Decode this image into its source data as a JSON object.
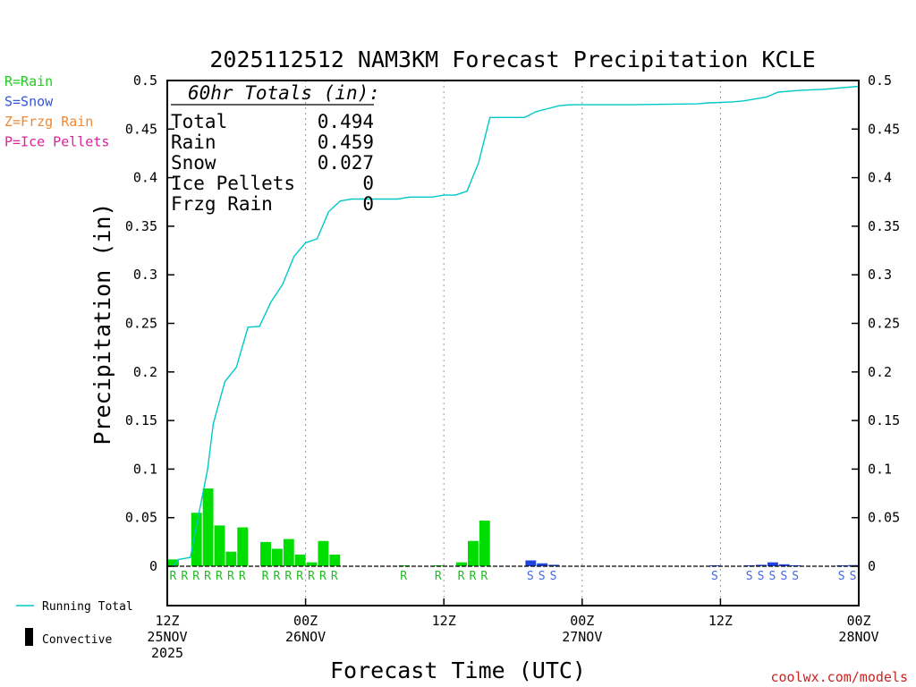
{
  "chart_data": {
    "type": "bar",
    "title": "2025112512 NAM3KM Forecast Precipitation KCLE",
    "ylabel": "Precipitation (in)",
    "xlabel": "Forecast Time (UTC)",
    "ylim": [
      0,
      0.5
    ],
    "xlim_hours": [
      0,
      60
    ],
    "y_ticks": [
      {
        "value": 0,
        "label": "0"
      },
      {
        "value": 0.05,
        "label": "0.05"
      },
      {
        "value": 0.1,
        "label": "0.1"
      },
      {
        "value": 0.15,
        "label": "0.15"
      },
      {
        "value": 0.2,
        "label": "0.2"
      },
      {
        "value": 0.25,
        "label": "0.25"
      },
      {
        "value": 0.3,
        "label": "0.3"
      },
      {
        "value": 0.35,
        "label": "0.35"
      },
      {
        "value": 0.4,
        "label": "0.4"
      },
      {
        "value": 0.45,
        "label": "0.45"
      },
      {
        "value": 0.5,
        "label": "0.5"
      }
    ],
    "x_ticks": [
      {
        "hour": 0,
        "lines": [
          "12Z",
          "25NOV",
          "2025"
        ]
      },
      {
        "hour": 12,
        "lines": [
          "00Z",
          "26NOV"
        ]
      },
      {
        "hour": 24,
        "lines": [
          "12Z"
        ]
      },
      {
        "hour": 36,
        "lines": [
          "00Z",
          "27NOV"
        ]
      },
      {
        "hour": 48,
        "lines": [
          "12Z"
        ]
      },
      {
        "hour": 60,
        "lines": [
          "00Z",
          "28NOV"
        ]
      }
    ],
    "gridlines_hours": [
      12,
      24,
      36,
      48
    ],
    "legend": [
      {
        "label": "R=Rain",
        "color": "#22cc22"
      },
      {
        "label": "S=Snow",
        "color": "#3355dd"
      },
      {
        "label": "Z=Frzg Rain",
        "color": "#ee8833"
      },
      {
        "label": "P=Ice Pellets",
        "color": "#dd2299"
      }
    ],
    "bottom_legend": [
      {
        "label": "Running Total",
        "color": "#00c8c8",
        "kind": "line"
      },
      {
        "label": "Convective",
        "color": "#000000",
        "kind": "bar"
      }
    ],
    "totals_header": "60hr Totals (in):",
    "totals": [
      {
        "label": "Total",
        "value": "0.494"
      },
      {
        "label": "Rain",
        "value": "0.459"
      },
      {
        "label": "Snow",
        "value": "0.027"
      },
      {
        "label": "Ice Pellets",
        "value": "0"
      },
      {
        "label": "Frzg Rain",
        "value": "0"
      }
    ],
    "type_colors": {
      "R": "#00dd00",
      "S": "#2244dd"
    },
    "type_label_colors": {
      "R": "#22bb22",
      "S": "#4466dd"
    },
    "series": [
      {
        "hour": 1,
        "value": 0.007,
        "ptype": "R"
      },
      {
        "hour": 2,
        "value": 0.0,
        "ptype": "R"
      },
      {
        "hour": 3,
        "value": 0.055,
        "ptype": "R"
      },
      {
        "hour": 4,
        "value": 0.08,
        "ptype": "R"
      },
      {
        "hour": 5,
        "value": 0.042,
        "ptype": "R"
      },
      {
        "hour": 6,
        "value": 0.015,
        "ptype": "R"
      },
      {
        "hour": 7,
        "value": 0.04,
        "ptype": "R"
      },
      {
        "hour": 9,
        "value": 0.025,
        "ptype": "R"
      },
      {
        "hour": 10,
        "value": 0.018,
        "ptype": "R"
      },
      {
        "hour": 11,
        "value": 0.028,
        "ptype": "R"
      },
      {
        "hour": 12,
        "value": 0.012,
        "ptype": "R"
      },
      {
        "hour": 13,
        "value": 0.004,
        "ptype": "R"
      },
      {
        "hour": 14,
        "value": 0.026,
        "ptype": "R"
      },
      {
        "hour": 15,
        "value": 0.012,
        "ptype": "R"
      },
      {
        "hour": 21,
        "value": 0.0005,
        "ptype": "R"
      },
      {
        "hour": 24,
        "value": 0.001,
        "ptype": "R"
      },
      {
        "hour": 26,
        "value": 0.004,
        "ptype": "R"
      },
      {
        "hour": 27,
        "value": 0.026,
        "ptype": "R"
      },
      {
        "hour": 28,
        "value": 0.047,
        "ptype": "R"
      },
      {
        "hour": 32,
        "value": 0.006,
        "ptype": "S"
      },
      {
        "hour": 33,
        "value": 0.003,
        "ptype": "S"
      },
      {
        "hour": 34,
        "value": 0.0015,
        "ptype": "S"
      },
      {
        "hour": 48,
        "value": 0.0003,
        "ptype": "S"
      },
      {
        "hour": 51,
        "value": 0.0005,
        "ptype": "S"
      },
      {
        "hour": 52,
        "value": 0.0015,
        "ptype": "S"
      },
      {
        "hour": 53,
        "value": 0.004,
        "ptype": "S"
      },
      {
        "hour": 54,
        "value": 0.002,
        "ptype": "S"
      },
      {
        "hour": 55,
        "value": 0.0005,
        "ptype": "S"
      },
      {
        "hour": 59,
        "value": 0.0002,
        "ptype": "S"
      },
      {
        "hour": 60,
        "value": 0.0012,
        "ptype": "S"
      }
    ],
    "running_total": [
      {
        "hour": 0.5,
        "value": 0.0
      },
      {
        "hour": 1,
        "value": 0.007
      },
      {
        "hour": 2,
        "value": 0.009
      },
      {
        "hour": 3,
        "value": 0.07
      },
      {
        "hour": 3.5,
        "value": 0.1
      },
      {
        "hour": 4,
        "value": 0.147
      },
      {
        "hour": 5,
        "value": 0.19
      },
      {
        "hour": 6,
        "value": 0.205
      },
      {
        "hour": 7,
        "value": 0.246
      },
      {
        "hour": 8,
        "value": 0.247
      },
      {
        "hour": 9,
        "value": 0.272
      },
      {
        "hour": 10,
        "value": 0.29
      },
      {
        "hour": 11,
        "value": 0.319
      },
      {
        "hour": 12,
        "value": 0.333
      },
      {
        "hour": 13,
        "value": 0.337
      },
      {
        "hour": 14,
        "value": 0.365
      },
      {
        "hour": 15,
        "value": 0.376
      },
      {
        "hour": 16,
        "value": 0.378
      },
      {
        "hour": 20,
        "value": 0.378
      },
      {
        "hour": 21,
        "value": 0.38
      },
      {
        "hour": 23,
        "value": 0.38
      },
      {
        "hour": 24,
        "value": 0.382
      },
      {
        "hour": 25,
        "value": 0.382
      },
      {
        "hour": 26,
        "value": 0.386
      },
      {
        "hour": 27,
        "value": 0.415
      },
      {
        "hour": 28,
        "value": 0.462
      },
      {
        "hour": 29,
        "value": 0.462
      },
      {
        "hour": 31,
        "value": 0.462
      },
      {
        "hour": 32,
        "value": 0.468
      },
      {
        "hour": 33,
        "value": 0.471
      },
      {
        "hour": 34,
        "value": 0.474
      },
      {
        "hour": 35,
        "value": 0.475
      },
      {
        "hour": 40,
        "value": 0.475
      },
      {
        "hour": 46,
        "value": 0.476
      },
      {
        "hour": 47,
        "value": 0.477
      },
      {
        "hour": 49,
        "value": 0.478
      },
      {
        "hour": 50,
        "value": 0.479
      },
      {
        "hour": 52,
        "value": 0.483
      },
      {
        "hour": 53,
        "value": 0.488
      },
      {
        "hour": 55,
        "value": 0.49
      },
      {
        "hour": 57,
        "value": 0.491
      },
      {
        "hour": 60,
        "value": 0.494
      }
    ],
    "type_markers": [
      {
        "hour": 1,
        "ptype": "R"
      },
      {
        "hour": 2,
        "ptype": "R"
      },
      {
        "hour": 3,
        "ptype": "R"
      },
      {
        "hour": 4,
        "ptype": "R"
      },
      {
        "hour": 5,
        "ptype": "R"
      },
      {
        "hour": 6,
        "ptype": "R"
      },
      {
        "hour": 7,
        "ptype": "R"
      },
      {
        "hour": 9,
        "ptype": "R"
      },
      {
        "hour": 10,
        "ptype": "R"
      },
      {
        "hour": 11,
        "ptype": "R"
      },
      {
        "hour": 12,
        "ptype": "R"
      },
      {
        "hour": 13,
        "ptype": "R"
      },
      {
        "hour": 14,
        "ptype": "R"
      },
      {
        "hour": 15,
        "ptype": "R"
      },
      {
        "hour": 21,
        "ptype": "R"
      },
      {
        "hour": 24,
        "ptype": "R"
      },
      {
        "hour": 26,
        "ptype": "R"
      },
      {
        "hour": 27,
        "ptype": "R"
      },
      {
        "hour": 28,
        "ptype": "R"
      },
      {
        "hour": 32,
        "ptype": "S"
      },
      {
        "hour": 33,
        "ptype": "S"
      },
      {
        "hour": 34,
        "ptype": "S"
      },
      {
        "hour": 48,
        "ptype": "S"
      },
      {
        "hour": 51,
        "ptype": "S"
      },
      {
        "hour": 52,
        "ptype": "S"
      },
      {
        "hour": 53,
        "ptype": "S"
      },
      {
        "hour": 54,
        "ptype": "S"
      },
      {
        "hour": 55,
        "ptype": "S"
      },
      {
        "hour": 59,
        "ptype": "S"
      },
      {
        "hour": 60,
        "ptype": "S"
      }
    ]
  },
  "footer": {
    "credit": "coolwx.com/models",
    "credit_color": "#cc2222"
  }
}
